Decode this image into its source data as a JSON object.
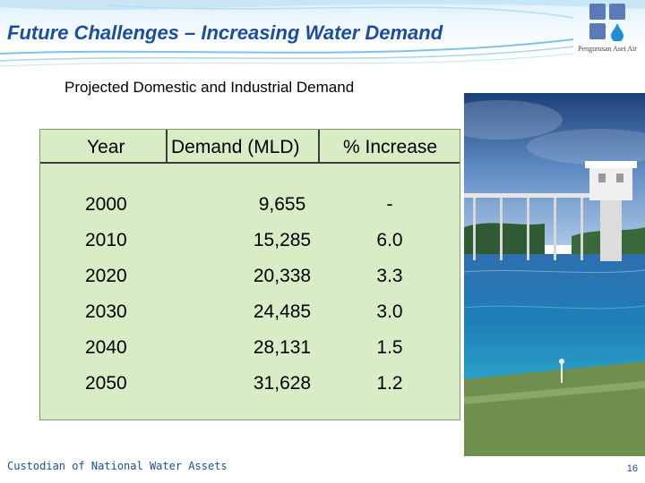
{
  "slide": {
    "title": "Future Challenges – Increasing Water Demand",
    "subtitle": "Projected Domestic and Industrial Demand",
    "logo_caption": "Pengurusan Aset Air",
    "footer": "Custodian of National Water Assets",
    "page_number": "16"
  },
  "table": {
    "headers": {
      "year": "Year",
      "demand": "Demand (MLD)",
      "increase": "% Increase"
    },
    "rows": [
      {
        "year": "2000",
        "demand": "9,655",
        "increase": "-"
      },
      {
        "year": "2010",
        "demand": "15,285",
        "increase": "6.0"
      },
      {
        "year": "2020",
        "demand": "20,338",
        "increase": "3.3"
      },
      {
        "year": "2030",
        "demand": "24,485",
        "increase": "3.0"
      },
      {
        "year": "2040",
        "demand": "28,131",
        "increase": "1.5"
      },
      {
        "year": "2050",
        "demand": "31,628",
        "increase": "1.2"
      }
    ]
  },
  "colors": {
    "title": "#1d4e9e",
    "table_fill": "#d8ecc6",
    "logo": "#5b7bb8"
  }
}
